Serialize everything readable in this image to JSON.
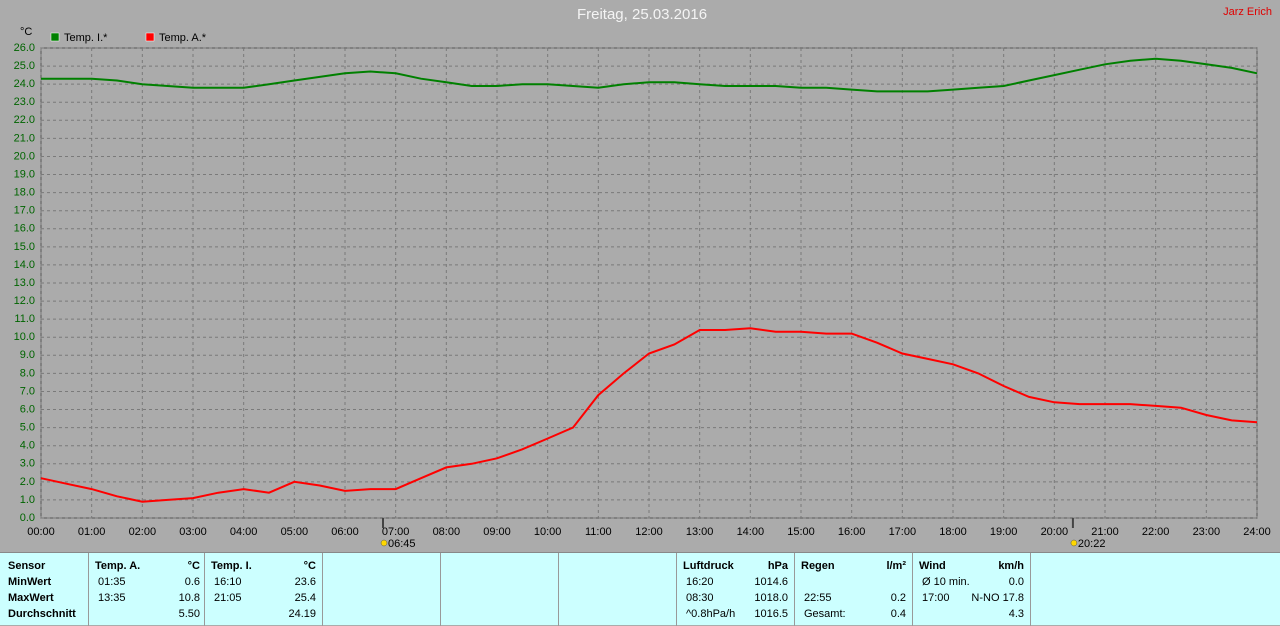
{
  "chart_data": {
    "type": "line",
    "title": "Freitag, 25.03.2016",
    "y_label": "°C",
    "x": [
      0,
      0.5,
      1,
      1.5,
      2,
      2.5,
      3,
      3.5,
      4,
      4.5,
      5,
      5.5,
      6,
      6.5,
      7,
      7.5,
      8,
      8.5,
      9,
      9.5,
      10,
      10.5,
      11,
      11.5,
      12,
      12.5,
      13,
      13.5,
      14,
      14.5,
      15,
      15.5,
      16,
      16.5,
      17,
      17.5,
      18,
      18.5,
      19,
      19.5,
      20,
      20.5,
      21,
      21.5,
      22,
      22.5,
      23,
      23.5,
      24
    ],
    "series": [
      {
        "name": "Temp. I.*",
        "color": "#008000",
        "values": [
          24.3,
          24.3,
          24.3,
          24.2,
          24.0,
          23.9,
          23.8,
          23.8,
          23.8,
          24.0,
          24.2,
          24.4,
          24.6,
          24.7,
          24.6,
          24.3,
          24.1,
          23.9,
          23.9,
          24.0,
          24.0,
          23.9,
          23.8,
          24.0,
          24.1,
          24.1,
          24.0,
          23.9,
          23.9,
          23.9,
          23.8,
          23.8,
          23.7,
          23.6,
          23.6,
          23.6,
          23.7,
          23.8,
          23.9,
          24.2,
          24.5,
          24.8,
          25.1,
          25.3,
          25.4,
          25.3,
          25.1,
          24.9,
          24.6
        ]
      },
      {
        "name": "Temp. A.*",
        "color": "#ff0000",
        "values": [
          2.2,
          1.9,
          1.6,
          1.2,
          0.9,
          1.0,
          1.1,
          1.4,
          1.6,
          1.4,
          2.0,
          1.8,
          1.5,
          1.6,
          1.6,
          2.2,
          2.8,
          3.0,
          3.3,
          3.8,
          4.4,
          5.0,
          6.8,
          8.0,
          9.1,
          9.6,
          10.4,
          10.4,
          10.5,
          10.3,
          10.3,
          10.2,
          10.2,
          9.7,
          9.1,
          8.8,
          8.5,
          8.0,
          7.3,
          6.7,
          6.4,
          6.3,
          6.3,
          6.3,
          6.2,
          6.1,
          5.7,
          5.4,
          5.3
        ]
      }
    ],
    "xlim": [
      0,
      24
    ],
    "xticks": [
      {
        "value": 0,
        "label": "00:00"
      },
      {
        "value": 1,
        "label": "01:00"
      },
      {
        "value": 2,
        "label": "02:00"
      },
      {
        "value": 3,
        "label": "03:00"
      },
      {
        "value": 4,
        "label": "04:00"
      },
      {
        "value": 5,
        "label": "05:00"
      },
      {
        "value": 6,
        "label": "06:00"
      },
      {
        "value": 7,
        "label": "07:00"
      },
      {
        "value": 8,
        "label": "08:00"
      },
      {
        "value": 9,
        "label": "09:00"
      },
      {
        "value": 10,
        "label": "10:00"
      },
      {
        "value": 11,
        "label": "11:00"
      },
      {
        "value": 12,
        "label": "12:00"
      },
      {
        "value": 13,
        "label": "13:00"
      },
      {
        "value": 14,
        "label": "14:00"
      },
      {
        "value": 15,
        "label": "15:00"
      },
      {
        "value": 16,
        "label": "16:00"
      },
      {
        "value": 17,
        "label": "17:00"
      },
      {
        "value": 18,
        "label": "18:00"
      },
      {
        "value": 19,
        "label": "19:00"
      },
      {
        "value": 20,
        "label": "20:00"
      },
      {
        "value": 21,
        "label": "21:00"
      },
      {
        "value": 22,
        "label": "22:00"
      },
      {
        "value": 23,
        "label": "23:00"
      },
      {
        "value": 24,
        "label": "24:00"
      }
    ],
    "ylim": [
      0,
      26
    ],
    "yticks": [
      {
        "value": 0,
        "label": "0.0"
      },
      {
        "value": 1,
        "label": "1.0"
      },
      {
        "value": 2,
        "label": "2.0"
      },
      {
        "value": 3,
        "label": "3.0"
      },
      {
        "value": 4,
        "label": "4.0"
      },
      {
        "value": 5,
        "label": "5.0"
      },
      {
        "value": 6,
        "label": "6.0"
      },
      {
        "value": 7,
        "label": "7.0"
      },
      {
        "value": 8,
        "label": "8.0"
      },
      {
        "value": 9,
        "label": "9.0"
      },
      {
        "value": 10,
        "label": "10.0"
      },
      {
        "value": 11,
        "label": "11.0"
      },
      {
        "value": 12,
        "label": "12.0"
      },
      {
        "value": 13,
        "label": "13.0"
      },
      {
        "value": 14,
        "label": "14.0"
      },
      {
        "value": 15,
        "label": "15.0"
      },
      {
        "value": 16,
        "label": "16.0"
      },
      {
        "value": 17,
        "label": "17.0"
      },
      {
        "value": 18,
        "label": "18.0"
      },
      {
        "value": 19,
        "label": "19.0"
      },
      {
        "value": 20,
        "label": "20.0"
      },
      {
        "value": 21,
        "label": "21.0"
      },
      {
        "value": 22,
        "label": "22.0"
      },
      {
        "value": 23,
        "label": "23.0"
      },
      {
        "value": 24,
        "label": "24.0"
      },
      {
        "value": 25,
        "label": "25.0"
      },
      {
        "value": 26,
        "label": "26.0"
      }
    ],
    "grid": true,
    "legend": "top-left",
    "annotations": [
      {
        "x": 6.75,
        "label": "06:45"
      },
      {
        "x": 20.3667,
        "label": "20:22"
      }
    ]
  },
  "author": "Jarz Erich",
  "stats": {
    "sensor": {
      "header": "Sensor",
      "rows": [
        "MinWert",
        "MaxWert",
        "Durchschnitt"
      ]
    },
    "blocks": [
      {
        "header": "Temp. A.",
        "unit": "°C",
        "rows": [
          {
            "time": "01:35",
            "value": "0.6"
          },
          {
            "time": "13:35",
            "value": "10.8"
          },
          {
            "value": "5.50"
          }
        ]
      },
      {
        "header": "Temp. I.",
        "unit": "°C",
        "rows": [
          {
            "time": "16:10",
            "value": "23.6"
          },
          {
            "time": "21:05",
            "value": "25.4"
          },
          {
            "value": "24.19"
          }
        ]
      },
      {
        "header": "Luftdruck",
        "unit": "hPa",
        "rows": [
          {
            "time": "16:20",
            "value": "1014.6"
          },
          {
            "time": "08:30",
            "value": "1018.0"
          },
          {
            "time": "^0.8hPa/h",
            "value": "1016.5"
          }
        ]
      },
      {
        "header": "Regen",
        "unit": "l/m²",
        "rows": [
          {},
          {
            "time": "22:55",
            "value": "0.2"
          },
          {
            "time": "Gesamt:",
            "value": "0.4"
          }
        ]
      },
      {
        "header": "Wind",
        "unit": "km/h",
        "rows": [
          {
            "time": "Ø 10 min.",
            "value": "0.0"
          },
          {
            "time": "17:00",
            "value": "N-NO 17.8"
          },
          {
            "value": "4.3"
          }
        ]
      }
    ]
  }
}
